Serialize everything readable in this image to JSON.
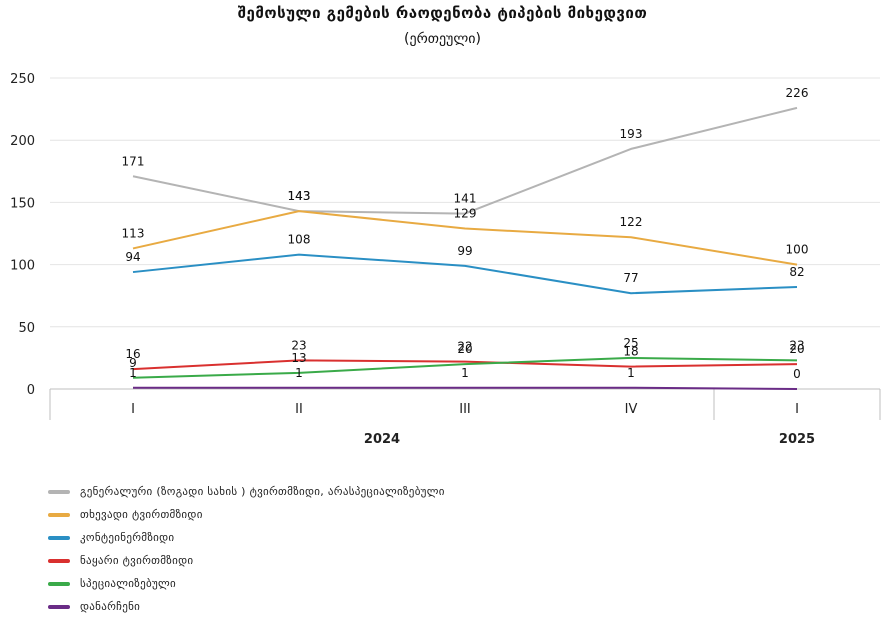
{
  "chart_data": {
    "type": "line",
    "title": "შემოსული გემების რაოდენობა ტიპების მიხედვით",
    "subtitle": "(ერთეული)",
    "categories": [
      "I",
      "II",
      "III",
      "IV",
      "I"
    ],
    "groups": [
      {
        "label": "2024",
        "span": [
          0,
          3
        ]
      },
      {
        "label": "2025",
        "span": [
          4,
          4
        ]
      }
    ],
    "ylim": [
      0,
      250
    ],
    "yticks": [
      0,
      50,
      100,
      150,
      200,
      250
    ],
    "grid": true,
    "legend_position": "bottom",
    "series": [
      {
        "name": "გენერალური (ზოგადი სახის ) ტვირთმზიდი, არასპეციალიზებული",
        "color": "#b4b4b4",
        "values": [
          171,
          143,
          141,
          193,
          226
        ]
      },
      {
        "name": "თხევადი ტვირთმზიდი",
        "color": "#e8aa42",
        "values": [
          113,
          143,
          129,
          122,
          100
        ]
      },
      {
        "name": "კონტეინერმზიდი",
        "color": "#2a8fc4",
        "values": [
          94,
          108,
          99,
          77,
          82
        ]
      },
      {
        "name": "ნაყარი ტვირთმზიდი",
        "color": "#d9302f",
        "values": [
          16,
          23,
          22,
          18,
          20
        ]
      },
      {
        "name": "სპეციალიზებული",
        "color": "#3aaa49",
        "values": [
          9,
          13,
          20,
          25,
          23
        ]
      },
      {
        "name": "დანარჩენი",
        "color": "#6a2c86",
        "values": [
          1,
          1,
          1,
          1,
          0
        ]
      }
    ]
  }
}
